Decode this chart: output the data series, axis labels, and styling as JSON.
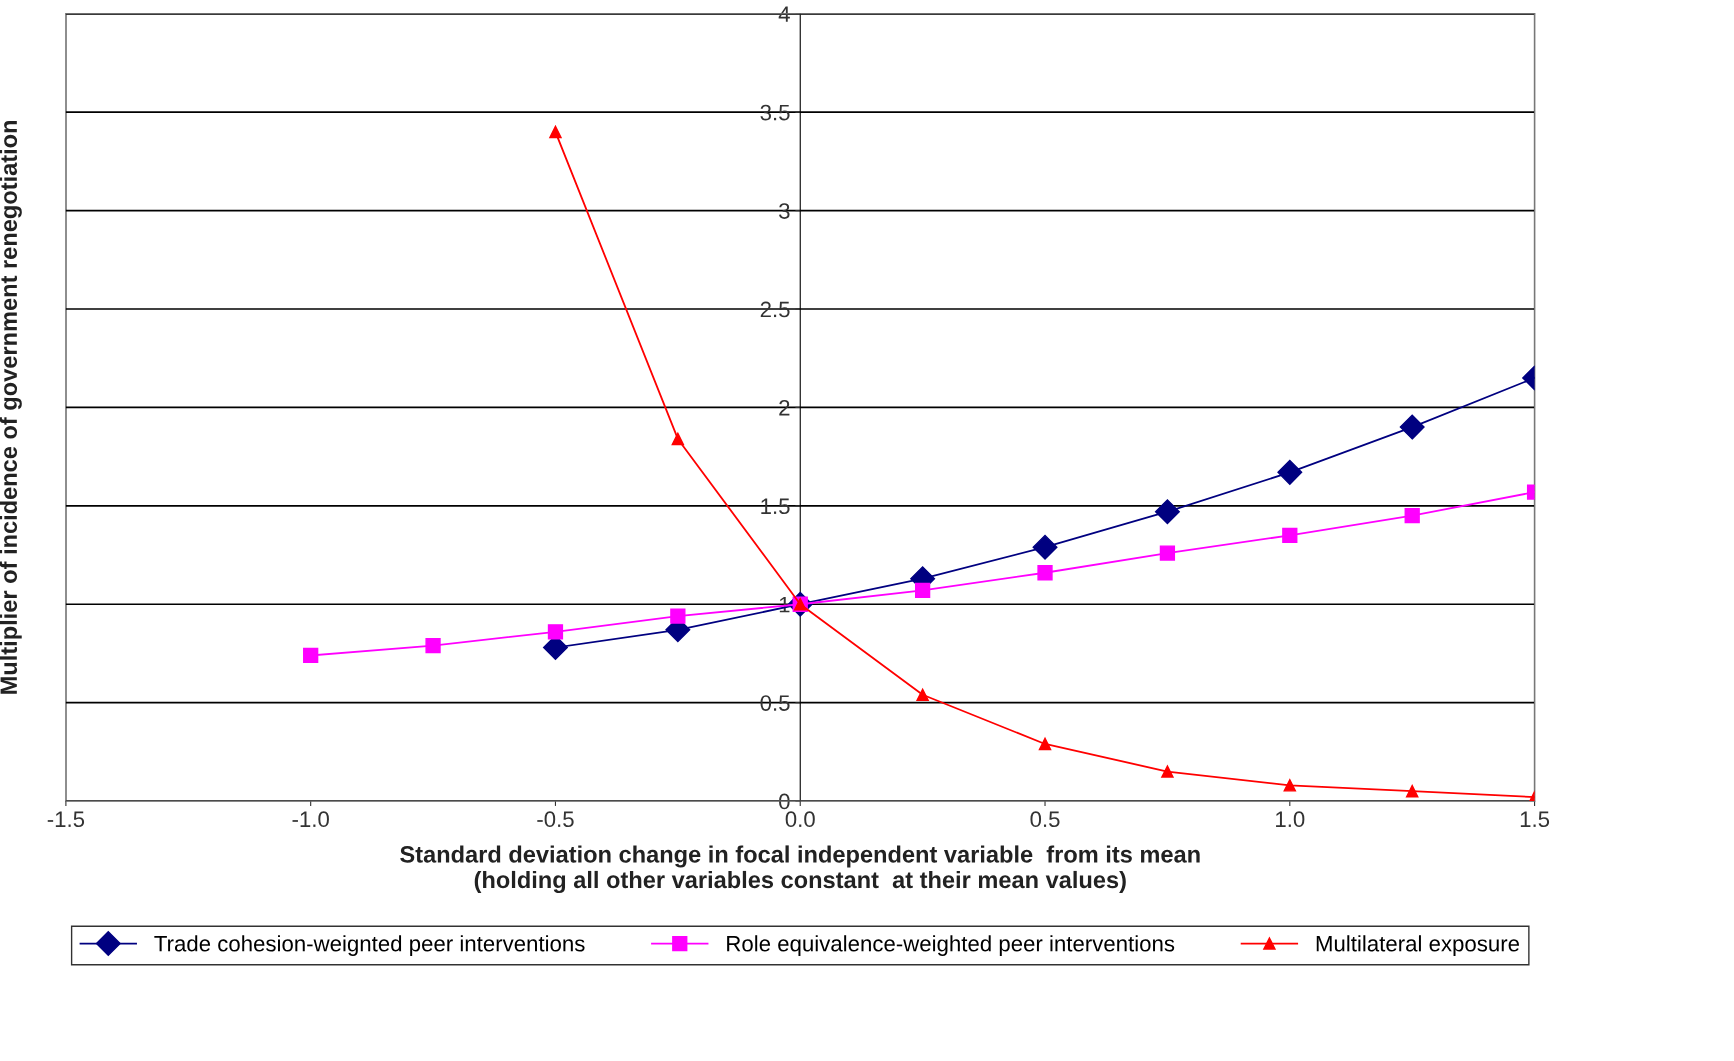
{
  "chart_data": {
    "type": "line",
    "xlabel": "Standard deviation change in focal independent variable  from its mean\n(holding all other variables constant  at their mean values)",
    "ylabel": "Multiplier of incidence of government renegotiation",
    "xlim": [
      -1.5,
      1.5
    ],
    "xticks": [
      {
        "value": -1.5,
        "label": "-1.5"
      },
      {
        "value": -1.0,
        "label": "-1.0"
      },
      {
        "value": -0.5,
        "label": "-0.5"
      },
      {
        "value": 0,
        "label": "0.0"
      },
      {
        "value": 0.5,
        "label": "0.5"
      },
      {
        "value": 1.0,
        "label": "1.0"
      },
      {
        "value": 1.5,
        "label": "1.5"
      }
    ],
    "ylim": [
      0,
      4
    ],
    "yticks": [
      0,
      0.5,
      1,
      1.5,
      2,
      2.5,
      3,
      3.5,
      4
    ],
    "grid": "y",
    "legend": "bottom",
    "series": [
      {
        "name": "Trade cohesion-weignted peer interventions",
        "color": "#000080",
        "marker": "diamond",
        "x": [
          -0.5,
          -0.25,
          0,
          0.25,
          0.5,
          0.75,
          1.0,
          1.25,
          1.5
        ],
        "values": [
          0.78,
          0.87,
          1.0,
          1.13,
          1.29,
          1.47,
          1.67,
          1.9,
          2.15
        ]
      },
      {
        "name": "Role equivalence-weighted peer interventions",
        "color": "#ff00ff",
        "marker": "square",
        "x": [
          -1.0,
          -0.75,
          -0.5,
          -0.25,
          0,
          0.25,
          0.5,
          0.75,
          1.0,
          1.25,
          1.5
        ],
        "values": [
          0.74,
          0.79,
          0.86,
          0.94,
          1.0,
          1.07,
          1.16,
          1.26,
          1.35,
          1.45,
          1.57
        ]
      },
      {
        "name": "Multilateral exposure",
        "color": "#ff0000",
        "marker": "triangle",
        "x": [
          -0.5,
          -0.25,
          0,
          0.25,
          0.5,
          0.75,
          1.0,
          1.25,
          1.5
        ],
        "values": [
          3.4,
          1.84,
          1.0,
          0.54,
          0.29,
          0.15,
          0.08,
          0.05,
          0.02
        ]
      }
    ]
  }
}
